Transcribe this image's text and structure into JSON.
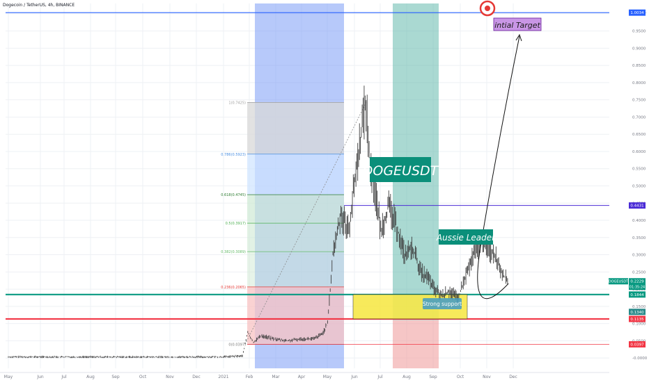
{
  "header": {
    "symbol_title": "Dogecoin / TetherUS, 4h, BINANCE"
  },
  "colors": {
    "background": "#ffffff",
    "grid": "#eef0f4",
    "candle": "#3d3d3d",
    "blue_band": "#7b9cf5",
    "green_band": "#55b3a5",
    "red_band": "#f0a0a0",
    "fib_top": "#d8d8d8",
    "fib_blue": "#cfe4ff",
    "fib_green": "#cfead4",
    "fib_red": "#f8c3c3",
    "teal_line": "#089981",
    "red_line": "#f23645",
    "purple_line": "#6a4cff",
    "label_green": "#0b8f7a",
    "target_box": "#c996e6",
    "support_box": "#f7e84a"
  },
  "chart_data": {
    "type": "candlestick",
    "title": "Dogecoin / TetherUS, 4h, BINANCE",
    "x_ticks": [
      "May",
      "Jun",
      "Jul",
      "Aug",
      "Sep",
      "Oct",
      "Nov",
      "Dec",
      "2021",
      "Feb",
      "Mar",
      "Apr",
      "May",
      "Jun",
      "Jul",
      "Aug",
      "Sep",
      "Oct",
      "Nov",
      "Dec"
    ],
    "y_ticks": [
      "1 USDT",
      "0.9500",
      "0.9000",
      "0.8500",
      "0.8000",
      "0.7500",
      "0.7000",
      "0.6500",
      "0.6000",
      "0.5500",
      "0.5000",
      "0.4500",
      "0.4000",
      "0.3500",
      "0.3000",
      "0.2500",
      "0.2000",
      "0.1500",
      "0.1000",
      "0.0500",
      "-0.0000"
    ],
    "y_range": [
      -0.03,
      1.03
    ],
    "price_path": [
      [
        0,
        0.003
      ],
      [
        2,
        0.0029
      ],
      [
        4,
        0.0028
      ],
      [
        6,
        0.0027
      ],
      [
        8,
        0.003
      ],
      [
        8.8,
        0.006
      ],
      [
        9.0,
        0.075
      ],
      [
        9.2,
        0.045
      ],
      [
        9.5,
        0.065
      ],
      [
        10,
        0.055
      ],
      [
        10.5,
        0.05
      ],
      [
        11,
        0.055
      ],
      [
        11.5,
        0.056
      ],
      [
        11.8,
        0.07
      ],
      [
        12,
        0.1
      ],
      [
        12.2,
        0.3
      ],
      [
        12.5,
        0.42
      ],
      [
        12.8,
        0.37
      ],
      [
        13,
        0.5
      ],
      [
        13.3,
        0.68
      ],
      [
        13.45,
        0.74
      ],
      [
        13.6,
        0.55
      ],
      [
        13.8,
        0.48
      ],
      [
        14,
        0.37
      ],
      [
        14.3,
        0.44
      ],
      [
        14.6,
        0.38
      ],
      [
        14.9,
        0.3
      ],
      [
        15.2,
        0.32
      ],
      [
        15.5,
        0.25
      ],
      [
        15.8,
        0.23
      ],
      [
        16,
        0.2
      ],
      [
        16.3,
        0.18
      ],
      [
        16.6,
        0.195
      ],
      [
        16.9,
        0.17
      ],
      [
        17.2,
        0.24
      ],
      [
        17.5,
        0.3
      ],
      [
        17.8,
        0.34
      ],
      [
        18,
        0.32
      ],
      [
        18.3,
        0.3
      ],
      [
        18.5,
        0.26
      ],
      [
        18.7,
        0.23
      ],
      [
        18.8,
        0.2229
      ]
    ],
    "fib_levels": [
      {
        "label": "1(0.7425)",
        "value": 0.7425
      },
      {
        "label": "0.786(0.5923)",
        "value": 0.5923
      },
      {
        "label": "0.618(0.4745)",
        "value": 0.4745
      },
      {
        "label": "0.5(0.3917)",
        "value": 0.3917
      },
      {
        "label": "0.382(0.3089)",
        "value": 0.3089
      },
      {
        "label": "0.236(0.2065)",
        "value": 0.2065
      },
      {
        "label": "0(0.0397)",
        "value": 0.0397
      }
    ],
    "horizontal_lines": [
      {
        "value": 1.0034,
        "label": "1.0034",
        "color": "#2962ff"
      },
      {
        "value": 0.4431,
        "label": "0.4431",
        "color": "#4a2bd6"
      },
      {
        "value": 0.1844,
        "label": "0.1844",
        "color": "#089981"
      },
      {
        "value": 0.1135,
        "label": "0.1135",
        "color": "#f23645"
      },
      {
        "value": 0.0397,
        "label": "0.0397",
        "color": "#f23645"
      }
    ],
    "price_labels": [
      {
        "text": "DOGEUSDT",
        "value": 0.2229
      },
      {
        "text": "0.2229",
        "value": 0.2229
      },
      {
        "text": "01:35:24",
        "value": 0.2229
      },
      {
        "text": "0.1340",
        "value": 0.134
      }
    ],
    "annotations": {
      "symbol_label": "DOGEUSDT",
      "leader_label": "Aussie Leader",
      "target_label": "intial Target",
      "support_label": "Strong support"
    }
  }
}
